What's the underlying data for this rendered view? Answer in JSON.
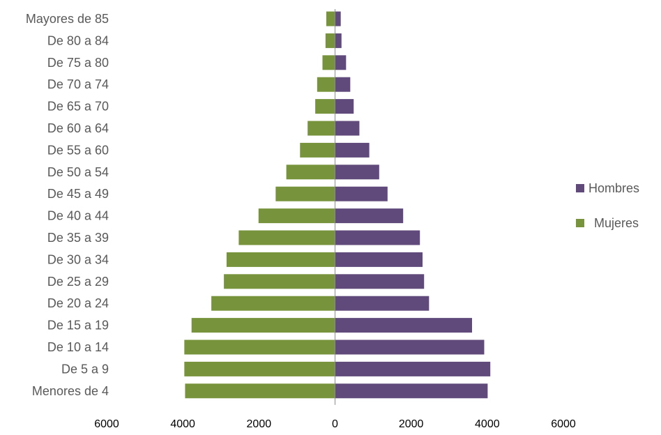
{
  "chart_data": {
    "type": "bar",
    "orientation": "horizontal",
    "categories": [
      "Mayores de 85",
      "De 80 a 84",
      "De 75 a 80",
      "De 70 a 74",
      "De 65 a 70",
      "De 60 a 64",
      "De 55 a 60",
      "De 50 a 54",
      "De 45 a 49",
      "De 40 a 44",
      "De 35 a 39",
      "De 30 a 34",
      "De 25 a 29",
      "De 20 a 24",
      "De 15 a 19",
      "De 10 a 14",
      "De 5 a 9",
      "Menores de 4"
    ],
    "series": [
      {
        "name": "Hombres",
        "color": "#604a7b",
        "values": [
          150,
          170,
          290,
          400,
          490,
          640,
          900,
          1160,
          1380,
          1790,
          2230,
          2300,
          2340,
          2470,
          3600,
          3920,
          4080,
          4010
        ]
      },
      {
        "name": "Mujeres",
        "color": "#77933c",
        "values": [
          230,
          250,
          330,
          470,
          520,
          720,
          920,
          1280,
          1560,
          2010,
          2530,
          2850,
          2920,
          3250,
          3770,
          3960,
          3960,
          3940
        ]
      }
    ],
    "xlim": [
      -6000,
      6000
    ],
    "xticks": [
      -6000,
      -4000,
      -2000,
      0,
      2000,
      4000,
      6000
    ],
    "xtick_labels": [
      "6000",
      "4000",
      "2000",
      "0",
      "2000",
      "4000",
      "6000"
    ],
    "legend_position": "right",
    "grid": false
  }
}
